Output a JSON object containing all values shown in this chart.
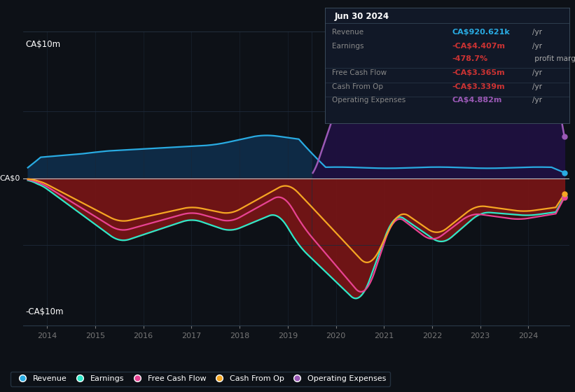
{
  "bg_color": "#0d1117",
  "colors": {
    "revenue": "#29abe2",
    "earnings": "#2de8c8",
    "free_cash_flow": "#e84393",
    "cash_from_op": "#f5a623",
    "operating_expenses": "#9b59b6"
  },
  "legend": [
    {
      "label": "Revenue",
      "color": "#29abe2"
    },
    {
      "label": "Earnings",
      "color": "#2de8c8"
    },
    {
      "label": "Free Cash Flow",
      "color": "#e84393"
    },
    {
      "label": "Cash From Op",
      "color": "#f5a623"
    },
    {
      "label": "Operating Expenses",
      "color": "#9b59b6"
    }
  ],
  "x_ticks": [
    2014,
    2015,
    2016,
    2017,
    2018,
    2019,
    2020,
    2021,
    2022,
    2023,
    2024
  ],
  "ylim": [
    -11,
    11
  ],
  "xlim_start": 2013.5,
  "xlim_end": 2024.85,
  "highlight_split": 2019.5
}
